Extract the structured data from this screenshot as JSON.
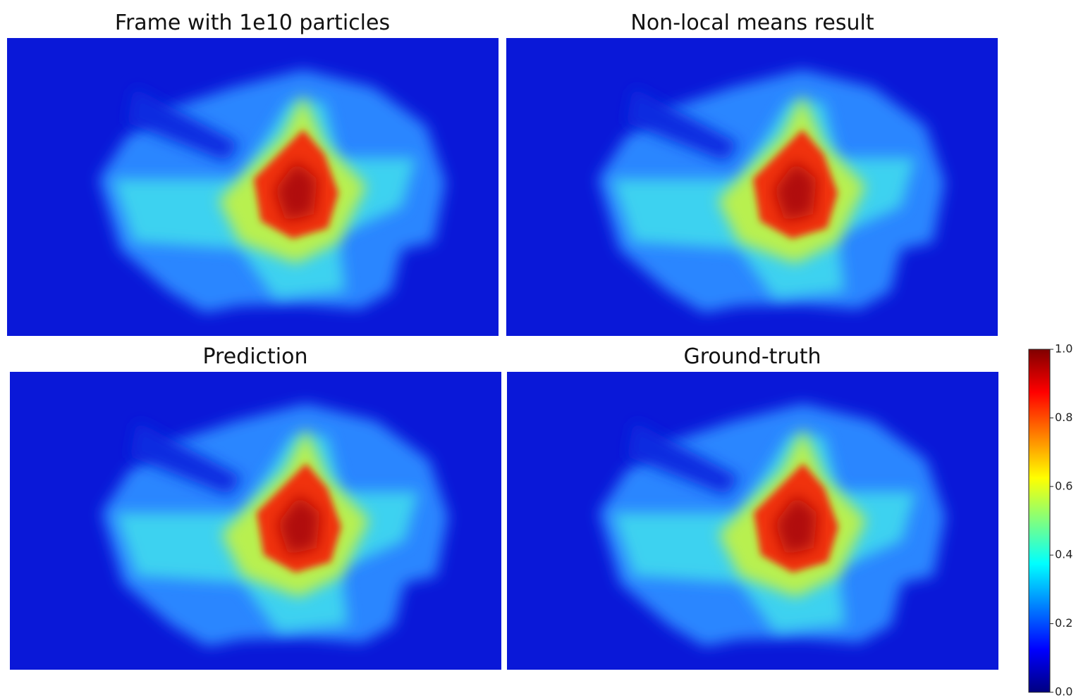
{
  "panels": [
    {
      "title": "Frame with 1e10 particles"
    },
    {
      "title": "Non-local means result"
    },
    {
      "title": "Prediction"
    },
    {
      "title": "Ground-truth"
    }
  ],
  "colorbar": {
    "lim": [
      0,
      1
    ],
    "ticks": [
      {
        "value": 0,
        "label": "0.0"
      },
      {
        "value": 0.2,
        "label": "0.2"
      },
      {
        "value": 0.4,
        "label": "0.4"
      },
      {
        "value": 0.6,
        "label": "0.6"
      },
      {
        "value": 0.8,
        "label": "0.8"
      },
      {
        "value": 1,
        "label": "1.0"
      }
    ]
  }
}
